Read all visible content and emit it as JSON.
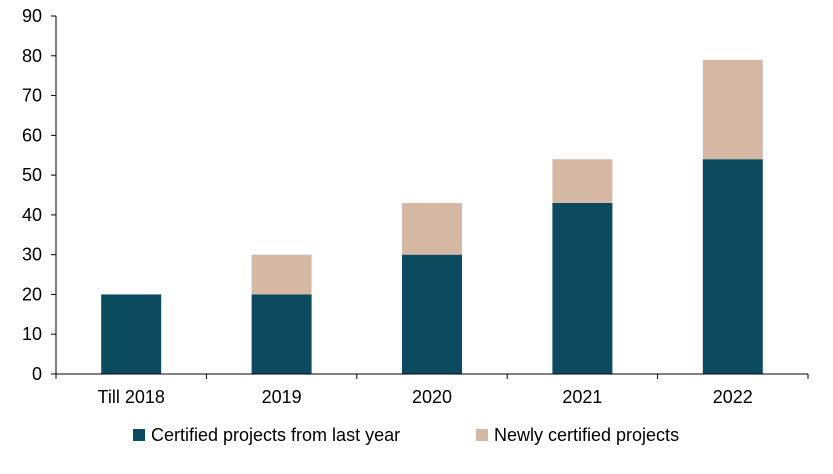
{
  "chart_data": {
    "type": "bar",
    "stacked": true,
    "title": "",
    "xlabel": "",
    "ylabel": "",
    "categories": [
      "Till 2018",
      "2019",
      "2020",
      "2021",
      "2022"
    ],
    "series": [
      {
        "name": "Certified projects from last year",
        "color": "#0c4a5f",
        "values": [
          20,
          20,
          30,
          43,
          54
        ]
      },
      {
        "name": "Newly certified projects",
        "color": "#d4b8a3",
        "values": [
          0,
          10,
          13,
          11,
          25
        ]
      }
    ],
    "ylim": [
      0,
      90
    ],
    "yticks": [
      0,
      10,
      20,
      30,
      40,
      50,
      60,
      70,
      80,
      90
    ],
    "grid": false,
    "legend": "bottom"
  }
}
